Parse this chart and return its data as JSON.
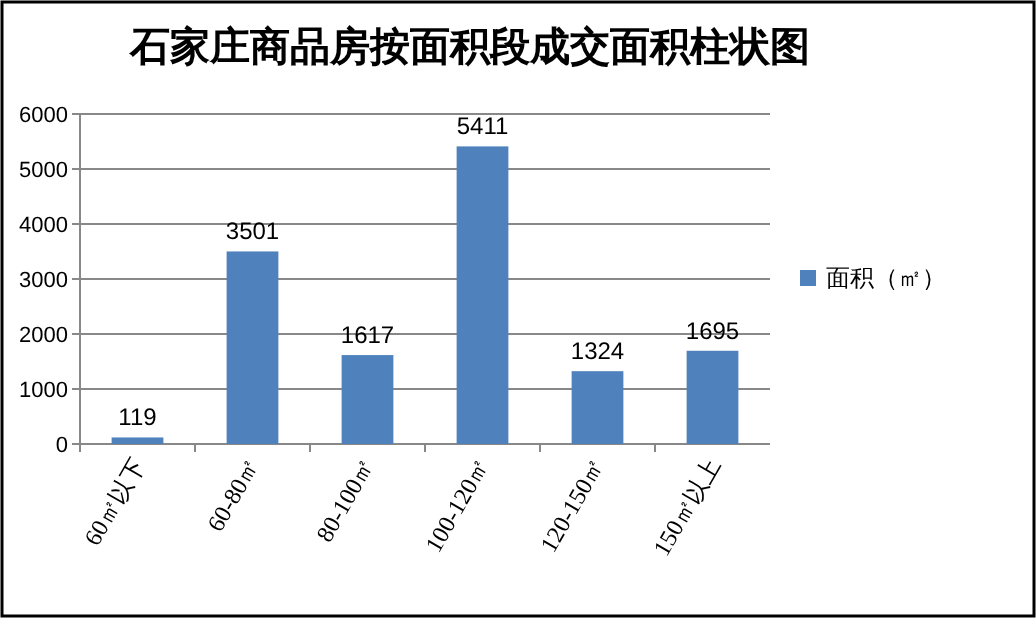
{
  "chart_data": {
    "type": "bar",
    "title": "石家庄商品房按面积段成交面积柱状图",
    "categories": [
      "60㎡以下",
      "60-80㎡",
      "80-100㎡",
      "100-120㎡",
      "120-150㎡",
      "150㎡以上"
    ],
    "series": [
      {
        "name": "面积（㎡）",
        "color": "#4f81bd",
        "values": [
          119,
          3501,
          1617,
          5411,
          1324,
          1695
        ]
      }
    ],
    "ylim": [
      0,
      6000
    ],
    "yticks": [
      0,
      1000,
      2000,
      3000,
      4000,
      5000,
      6000
    ],
    "grid": "y",
    "legend": "right",
    "data_labels": true
  }
}
